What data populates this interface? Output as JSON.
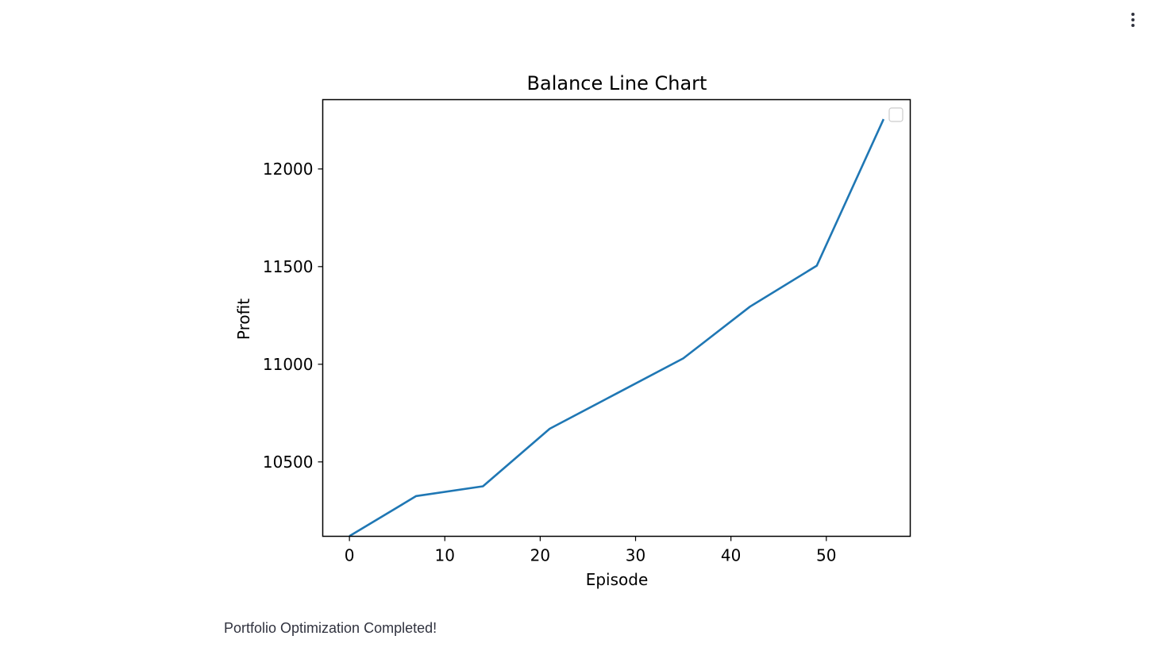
{
  "header": {
    "menu_icon": "kebab-menu-icon"
  },
  "chart_data": {
    "type": "line",
    "title": "Balance Line Chart",
    "xlabel": "Episode",
    "ylabel": "Profit",
    "xlim": [
      -2.8,
      58.8
    ],
    "ylim": [
      10119,
      12355
    ],
    "xticks": [
      0,
      10,
      20,
      30,
      40,
      50
    ],
    "yticks": [
      10500,
      11000,
      11500,
      12000
    ],
    "legend": "top-right",
    "grid": false,
    "series": [
      {
        "color": "#1f77b4",
        "x": [
          0,
          7,
          14,
          21,
          28,
          35,
          42,
          49,
          56
        ],
        "y": [
          10120,
          10325,
          10375,
          10670,
          10850,
          11030,
          11295,
          11505,
          12255
        ]
      }
    ]
  },
  "status": {
    "message": "Portfolio Optimization Completed!"
  }
}
